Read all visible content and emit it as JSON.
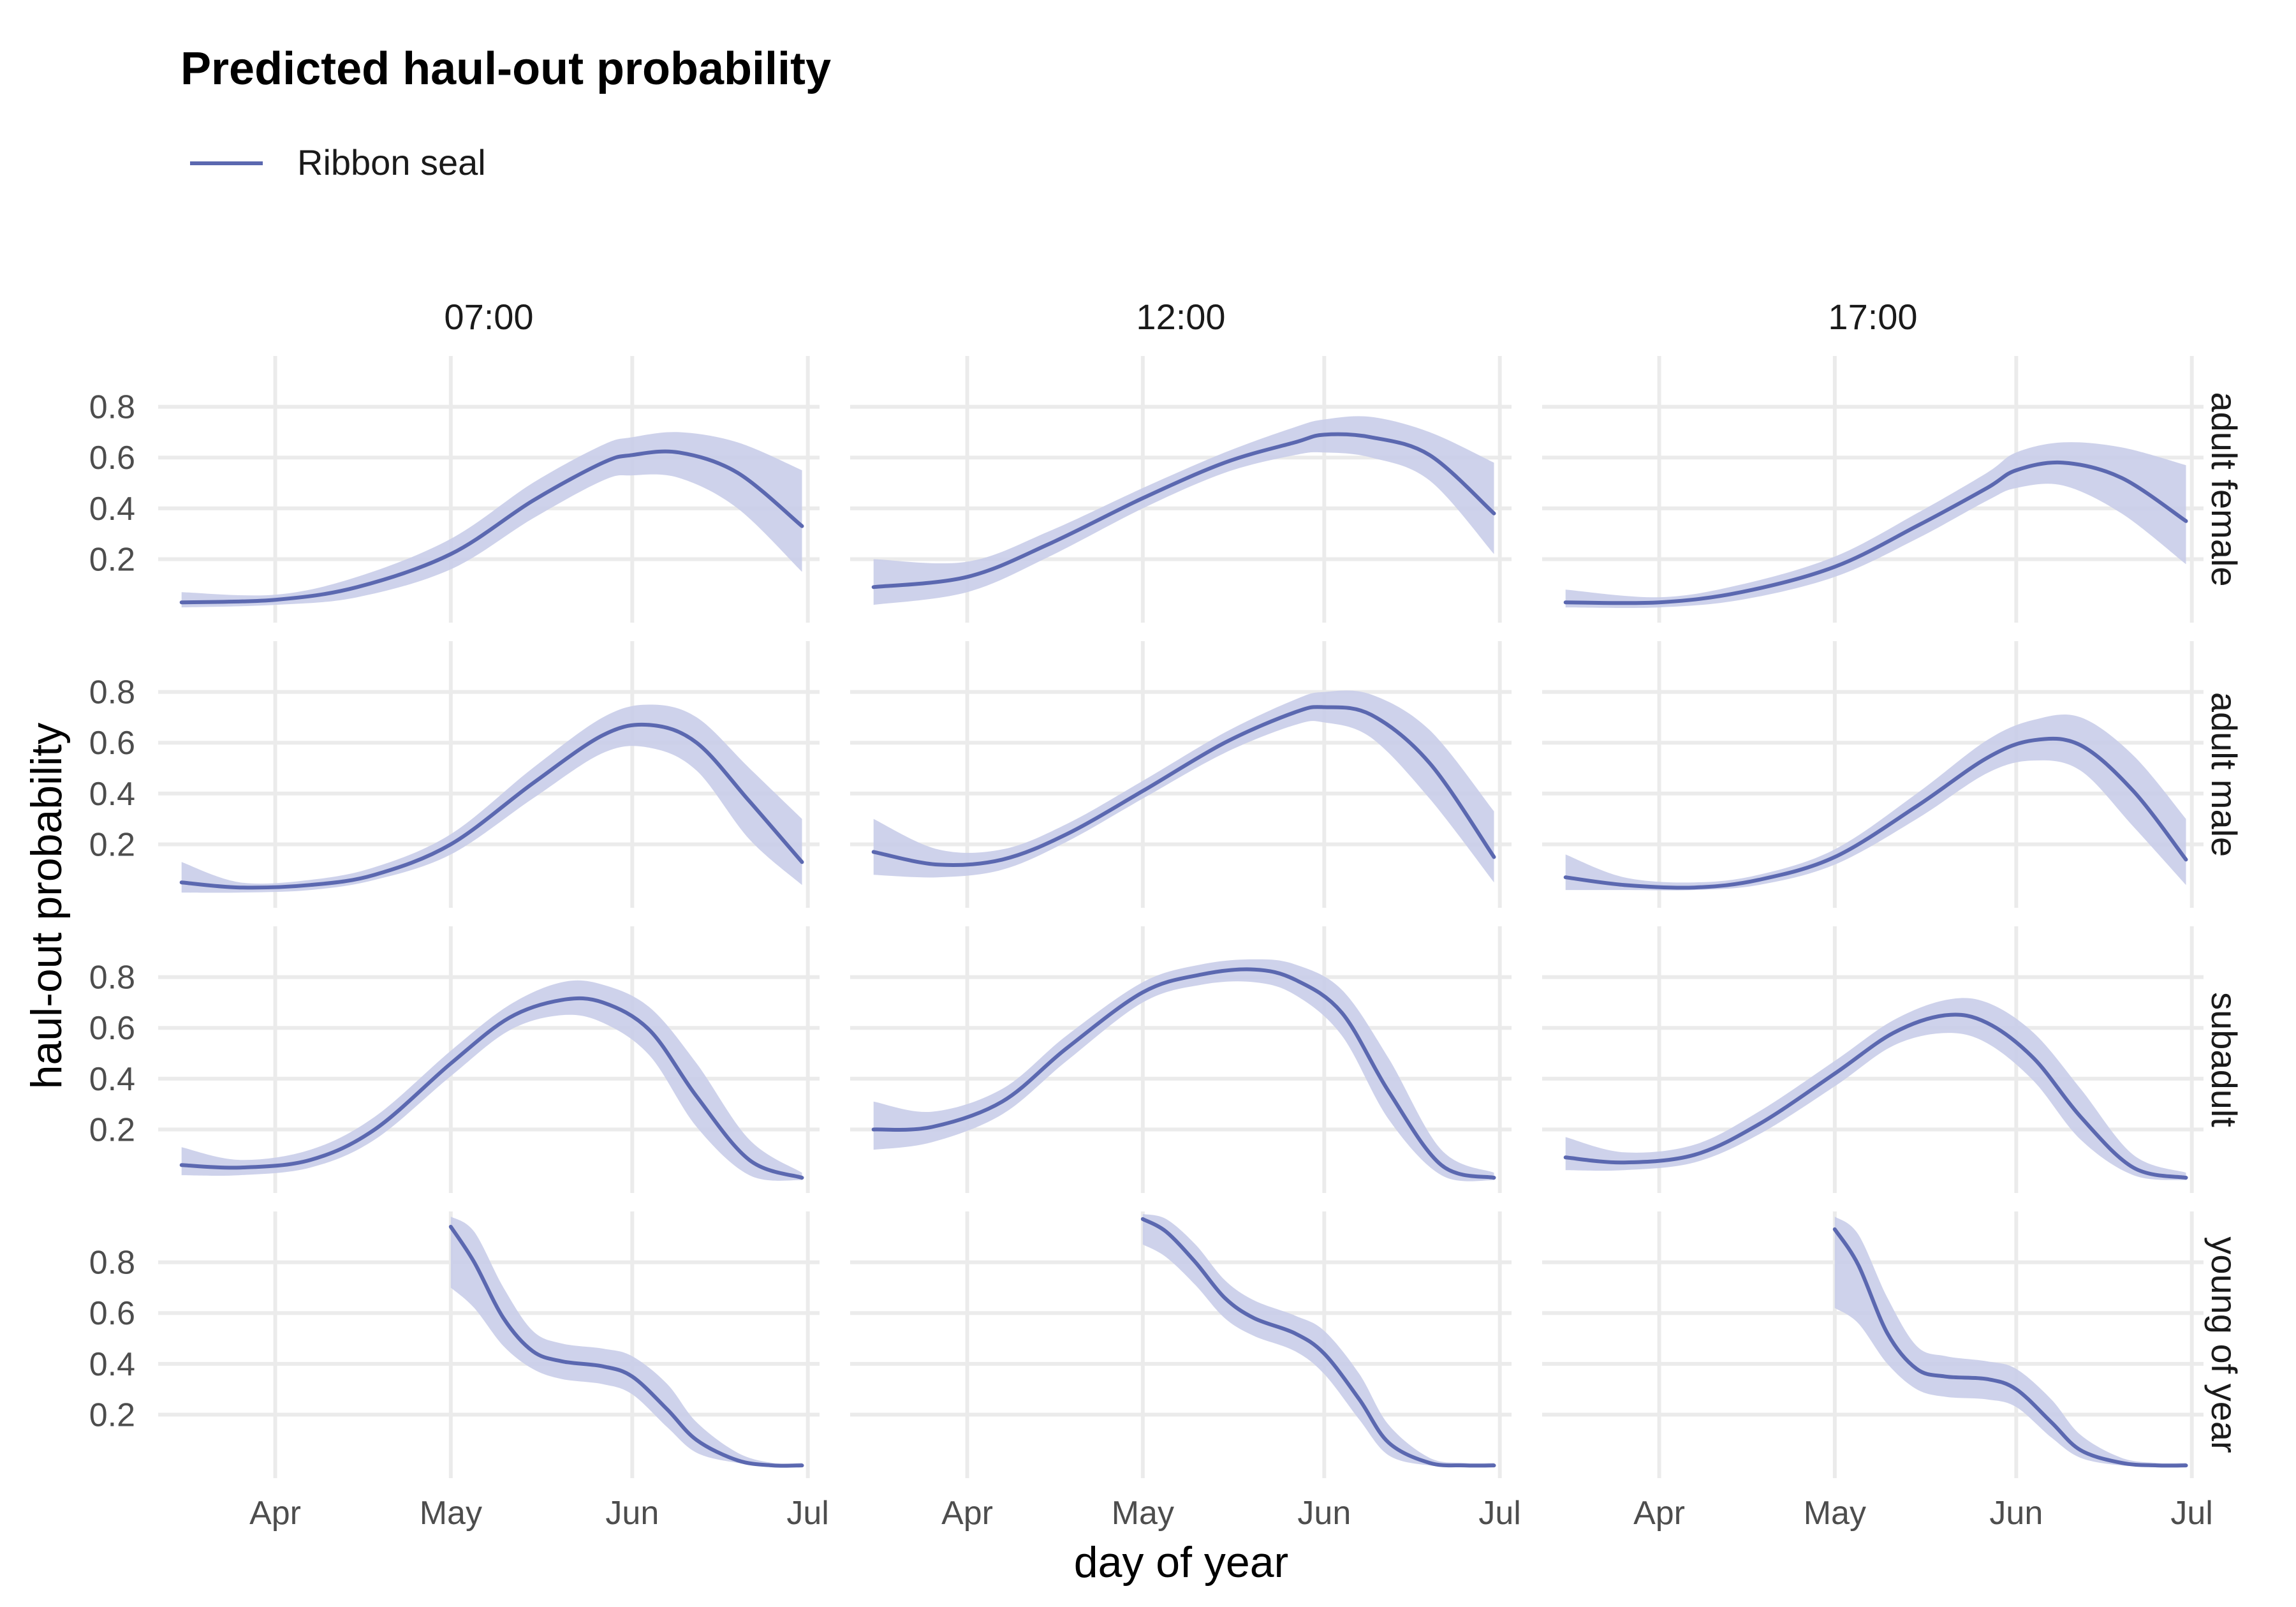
{
  "chart_data": {
    "type": "line",
    "title": "Predicted haul-out probability",
    "legend": {
      "position": "top-left",
      "entries": [
        {
          "label": "Ribbon seal",
          "color": "#5b68b0"
        }
      ]
    },
    "xlabel": "day of year",
    "ylabel": "haul-out probability",
    "x_ticks": [
      {
        "label": "Apr",
        "day": 91
      },
      {
        "label": "May",
        "day": 121
      },
      {
        "label": "Jun",
        "day": 152
      },
      {
        "label": "Jul",
        "day": 182
      }
    ],
    "xlim": [
      71,
      184
    ],
    "y_ticks": [
      0.2,
      0.4,
      0.6,
      0.8
    ],
    "y_tick_labels": [
      "0.2",
      "0.4",
      "0.6",
      "0.8"
    ],
    "ylim": [
      -0.05,
      1.0
    ],
    "columns": [
      "07:00",
      "12:00",
      "17:00"
    ],
    "rows": [
      "adult female",
      "adult male",
      "subadult",
      "young of year"
    ],
    "panels": [
      {
        "row": "adult female",
        "col": "07:00",
        "x": [
          75,
          91,
          105,
          121,
          135,
          147,
          152,
          160,
          170,
          181
        ],
        "y": [
          0.03,
          0.04,
          0.09,
          0.22,
          0.43,
          0.58,
          0.61,
          0.62,
          0.54,
          0.33
        ],
        "lower": [
          0.01,
          0.02,
          0.05,
          0.16,
          0.36,
          0.51,
          0.53,
          0.52,
          0.4,
          0.15
        ],
        "upper": [
          0.07,
          0.06,
          0.13,
          0.28,
          0.5,
          0.65,
          0.68,
          0.7,
          0.66,
          0.55
        ]
      },
      {
        "row": "adult female",
        "col": "12:00",
        "x": [
          75,
          91,
          105,
          121,
          135,
          147,
          152,
          160,
          170,
          181
        ],
        "y": [
          0.09,
          0.13,
          0.26,
          0.44,
          0.58,
          0.66,
          0.69,
          0.68,
          0.61,
          0.38
        ],
        "lower": [
          0.02,
          0.07,
          0.21,
          0.4,
          0.54,
          0.61,
          0.62,
          0.6,
          0.51,
          0.22
        ],
        "upper": [
          0.2,
          0.19,
          0.31,
          0.48,
          0.62,
          0.72,
          0.75,
          0.76,
          0.7,
          0.58
        ]
      },
      {
        "row": "adult female",
        "col": "17:00",
        "x": [
          75,
          91,
          105,
          121,
          135,
          147,
          152,
          160,
          170,
          181
        ],
        "y": [
          0.03,
          0.03,
          0.07,
          0.17,
          0.33,
          0.48,
          0.55,
          0.58,
          0.52,
          0.35
        ],
        "lower": [
          0.01,
          0.01,
          0.04,
          0.13,
          0.28,
          0.43,
          0.48,
          0.49,
          0.38,
          0.18
        ],
        "upper": [
          0.08,
          0.05,
          0.1,
          0.21,
          0.38,
          0.54,
          0.62,
          0.66,
          0.64,
          0.57
        ]
      },
      {
        "row": "adult male",
        "col": "07:00",
        "x": [
          75,
          85,
          97,
          108,
          121,
          135,
          147,
          155,
          163,
          172,
          181
        ],
        "y": [
          0.05,
          0.03,
          0.04,
          0.08,
          0.2,
          0.44,
          0.63,
          0.67,
          0.6,
          0.37,
          0.13
        ],
        "lower": [
          0.01,
          0.01,
          0.02,
          0.06,
          0.16,
          0.38,
          0.56,
          0.58,
          0.49,
          0.22,
          0.04
        ],
        "upper": [
          0.13,
          0.05,
          0.06,
          0.11,
          0.24,
          0.5,
          0.7,
          0.75,
          0.7,
          0.5,
          0.3
        ]
      },
      {
        "row": "adult male",
        "col": "12:00",
        "x": [
          75,
          86,
          97,
          108,
          121,
          135,
          147,
          152,
          160,
          170,
          181
        ],
        "y": [
          0.17,
          0.12,
          0.14,
          0.24,
          0.41,
          0.6,
          0.72,
          0.74,
          0.71,
          0.52,
          0.15
        ],
        "lower": [
          0.08,
          0.07,
          0.1,
          0.21,
          0.38,
          0.56,
          0.67,
          0.68,
          0.62,
          0.38,
          0.05
        ],
        "upper": [
          0.3,
          0.18,
          0.18,
          0.28,
          0.45,
          0.64,
          0.77,
          0.8,
          0.79,
          0.65,
          0.33
        ]
      },
      {
        "row": "adult male",
        "col": "17:00",
        "x": [
          75,
          85,
          97,
          108,
          121,
          135,
          147,
          155,
          163,
          172,
          181
        ],
        "y": [
          0.07,
          0.04,
          0.03,
          0.06,
          0.15,
          0.35,
          0.54,
          0.61,
          0.59,
          0.41,
          0.14
        ],
        "lower": [
          0.02,
          0.02,
          0.02,
          0.04,
          0.12,
          0.3,
          0.48,
          0.53,
          0.49,
          0.27,
          0.04
        ],
        "upper": [
          0.16,
          0.07,
          0.05,
          0.08,
          0.18,
          0.4,
          0.61,
          0.69,
          0.7,
          0.55,
          0.3
        ]
      },
      {
        "row": "subadult",
        "col": "07:00",
        "x": [
          75,
          85,
          97,
          108,
          121,
          131,
          140,
          147,
          155,
          163,
          172,
          181
        ],
        "y": [
          0.06,
          0.05,
          0.08,
          0.2,
          0.46,
          0.64,
          0.71,
          0.7,
          0.59,
          0.33,
          0.08,
          0.01
        ],
        "lower": [
          0.02,
          0.02,
          0.05,
          0.16,
          0.41,
          0.59,
          0.65,
          0.62,
          0.49,
          0.21,
          0.02,
          0.0
        ],
        "upper": [
          0.13,
          0.08,
          0.12,
          0.25,
          0.51,
          0.69,
          0.78,
          0.77,
          0.68,
          0.46,
          0.16,
          0.03
        ]
      },
      {
        "row": "subadult",
        "col": "12:00",
        "x": [
          75,
          85,
          97,
          108,
          121,
          131,
          140,
          147,
          155,
          163,
          172,
          181
        ],
        "y": [
          0.2,
          0.21,
          0.31,
          0.52,
          0.74,
          0.81,
          0.83,
          0.79,
          0.66,
          0.35,
          0.06,
          0.01
        ],
        "lower": [
          0.12,
          0.15,
          0.26,
          0.47,
          0.7,
          0.77,
          0.78,
          0.73,
          0.57,
          0.24,
          0.02,
          0.0
        ],
        "upper": [
          0.31,
          0.27,
          0.36,
          0.57,
          0.78,
          0.85,
          0.87,
          0.85,
          0.75,
          0.48,
          0.12,
          0.03
        ]
      },
      {
        "row": "subadult",
        "col": "17:00",
        "x": [
          75,
          85,
          97,
          108,
          121,
          131,
          140,
          147,
          155,
          163,
          172,
          181
        ],
        "y": [
          0.09,
          0.07,
          0.1,
          0.22,
          0.42,
          0.58,
          0.65,
          0.62,
          0.48,
          0.25,
          0.05,
          0.01
        ],
        "lower": [
          0.04,
          0.04,
          0.07,
          0.18,
          0.37,
          0.53,
          0.58,
          0.54,
          0.39,
          0.16,
          0.02,
          0.0
        ],
        "upper": [
          0.17,
          0.11,
          0.14,
          0.27,
          0.47,
          0.63,
          0.71,
          0.7,
          0.58,
          0.36,
          0.1,
          0.03
        ]
      },
      {
        "row": "young of year",
        "col": "07:00",
        "x": [
          121,
          125,
          130,
          135,
          140,
          147,
          152,
          158,
          163,
          170,
          176,
          181
        ],
        "y": [
          0.94,
          0.8,
          0.58,
          0.45,
          0.41,
          0.39,
          0.35,
          0.22,
          0.1,
          0.02,
          0.0,
          0.0
        ],
        "lower": [
          0.7,
          0.62,
          0.47,
          0.38,
          0.34,
          0.32,
          0.28,
          0.15,
          0.05,
          0.01,
          0.0,
          0.0
        ],
        "upper": [
          0.98,
          0.92,
          0.7,
          0.53,
          0.48,
          0.46,
          0.43,
          0.32,
          0.17,
          0.05,
          0.01,
          0.01
        ]
      },
      {
        "row": "young of year",
        "col": "12:00",
        "x": [
          121,
          125,
          130,
          135,
          140,
          147,
          152,
          158,
          163,
          170,
          176,
          181
        ],
        "y": [
          0.97,
          0.92,
          0.8,
          0.66,
          0.58,
          0.52,
          0.44,
          0.26,
          0.09,
          0.01,
          0.0,
          0.0
        ],
        "lower": [
          0.87,
          0.82,
          0.71,
          0.58,
          0.51,
          0.45,
          0.36,
          0.18,
          0.04,
          0.0,
          0.0,
          0.0
        ],
        "upper": [
          0.99,
          0.97,
          0.87,
          0.73,
          0.65,
          0.59,
          0.53,
          0.36,
          0.16,
          0.03,
          0.01,
          0.01
        ]
      },
      {
        "row": "young of year",
        "col": "17:00",
        "x": [
          121,
          125,
          130,
          135,
          140,
          147,
          152,
          158,
          163,
          170,
          176,
          181
        ],
        "y": [
          0.93,
          0.79,
          0.52,
          0.38,
          0.35,
          0.34,
          0.3,
          0.17,
          0.06,
          0.01,
          0.0,
          0.0
        ],
        "lower": [
          0.62,
          0.56,
          0.4,
          0.3,
          0.27,
          0.26,
          0.23,
          0.11,
          0.03,
          0.0,
          0.0,
          0.0
        ],
        "upper": [
          0.98,
          0.91,
          0.66,
          0.47,
          0.43,
          0.41,
          0.38,
          0.26,
          0.12,
          0.03,
          0.01,
          0.01
        ]
      }
    ]
  }
}
